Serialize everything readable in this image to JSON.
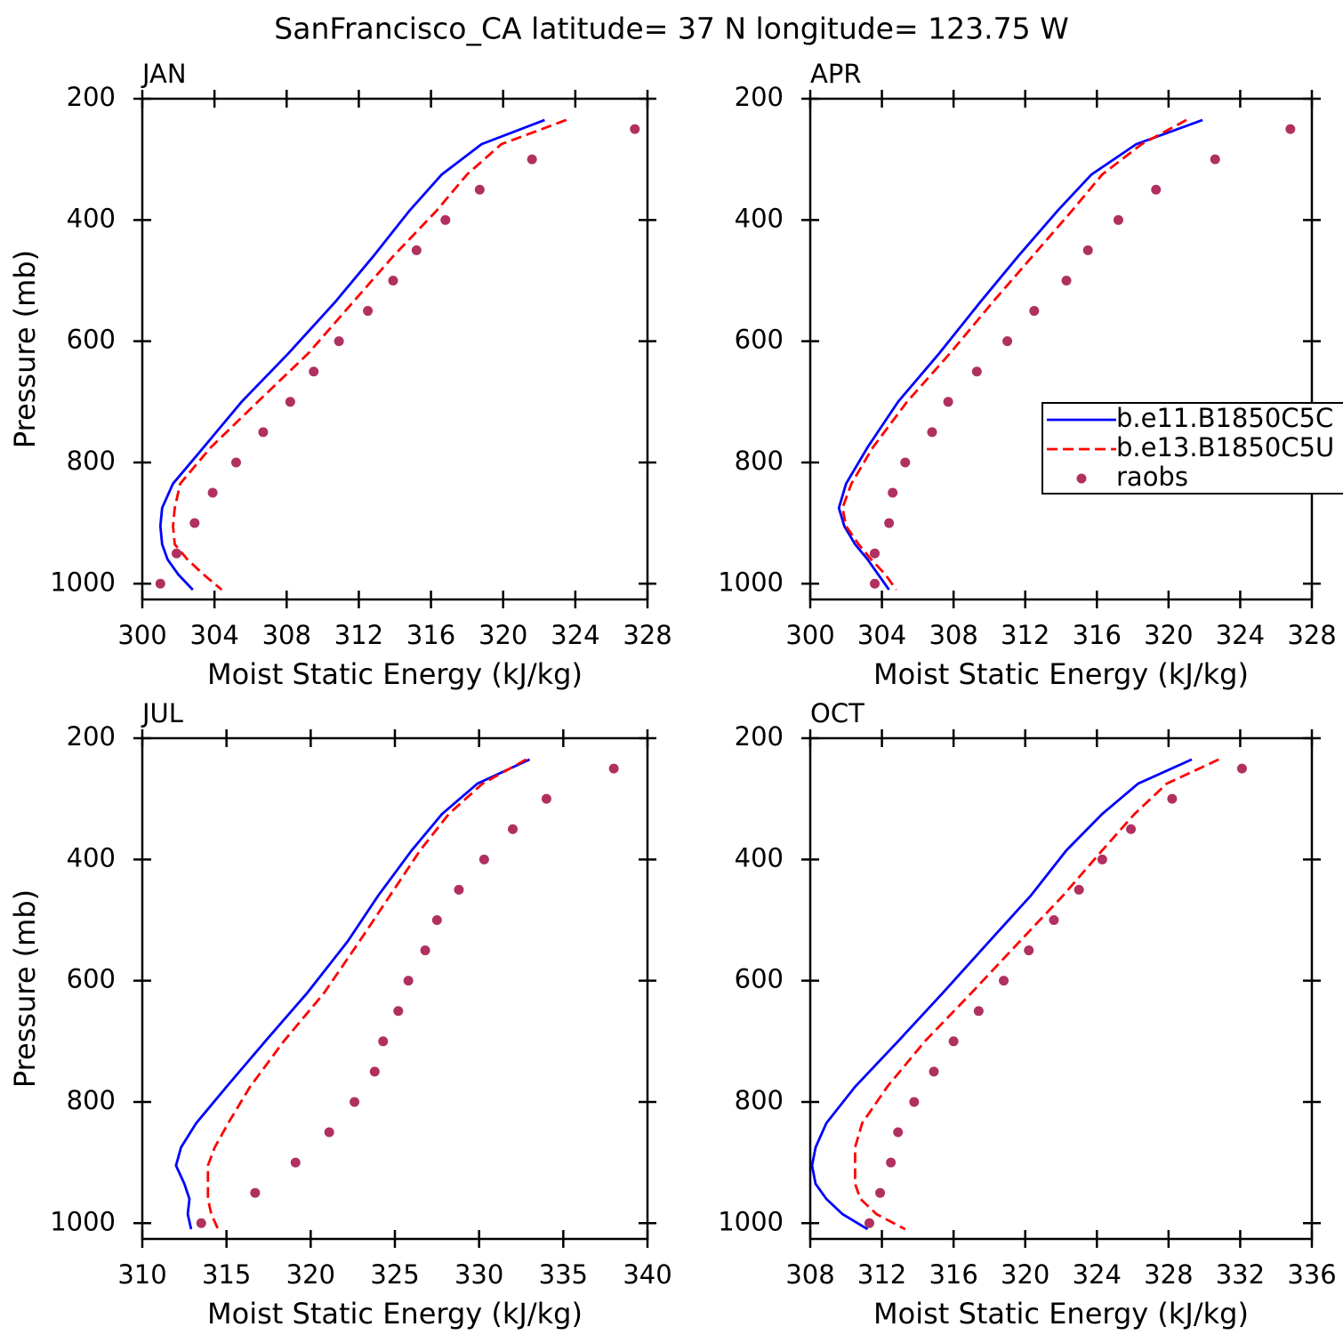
{
  "title": "SanFrancisco_CA  latitude= 37 N longitude= 123.75 W",
  "chart_data": [
    {
      "type": "line",
      "title": "JAN",
      "xlabel": "Moist Static Energy (kJ/kg)",
      "ylabel": "Pressure (mb)",
      "xlim": [
        300,
        328
      ],
      "xticks": [
        300,
        304,
        308,
        312,
        316,
        320,
        324,
        328
      ],
      "ylim": [
        1026,
        200
      ],
      "yticks": [
        200,
        400,
        600,
        800,
        1000
      ],
      "series": [
        {
          "color": "#0000ff",
          "style": "solid",
          "y": [
            235,
            275,
            325,
            385,
            460,
            535,
            620,
            700,
            775,
            835,
            875,
            905,
            935,
            960,
            985,
            1010
          ],
          "values": [
            322.3,
            318.8,
            316.6,
            314.8,
            312.8,
            310.7,
            308.1,
            305.5,
            303.4,
            301.7,
            301.1,
            301.0,
            301.1,
            301.4,
            302.0,
            302.8
          ]
        },
        {
          "color": "#ff0000",
          "style": "dashed",
          "y": [
            235,
            275,
            325,
            385,
            460,
            535,
            620,
            700,
            775,
            835,
            875,
            905,
            935,
            960,
            985,
            1010
          ],
          "values": [
            323.5,
            319.9,
            318.0,
            316.3,
            313.9,
            311.7,
            309.2,
            306.4,
            303.8,
            302.1,
            301.8,
            301.7,
            301.8,
            302.5,
            303.4,
            304.4
          ]
        },
        {
          "color": "#b03060",
          "style": "dots",
          "y": [
            1000,
            950,
            900,
            850,
            800,
            750,
            700,
            650,
            600,
            550,
            500,
            450,
            400,
            350,
            300,
            250
          ],
          "values": [
            301.0,
            301.9,
            302.9,
            303.9,
            305.2,
            306.7,
            308.2,
            309.5,
            310.9,
            312.5,
            313.9,
            315.2,
            316.8,
            318.7,
            321.6,
            327.3
          ]
        }
      ]
    },
    {
      "type": "line",
      "title": "APR",
      "xlabel": "Moist Static Energy (kJ/kg)",
      "xlim": [
        300,
        328
      ],
      "xticks": [
        300,
        304,
        308,
        312,
        316,
        320,
        324,
        328
      ],
      "ylim": [
        1026,
        200
      ],
      "yticks": [
        200,
        400,
        600,
        800,
        1000
      ],
      "legend": "right",
      "series": [
        {
          "name": "b.e11.B1850C5C",
          "color": "#0000ff",
          "style": "solid",
          "y": [
            235,
            275,
            325,
            385,
            460,
            535,
            620,
            700,
            775,
            835,
            875,
            905,
            935,
            960,
            985,
            1010
          ],
          "values": [
            321.9,
            318.2,
            315.7,
            313.8,
            311.6,
            309.5,
            307.2,
            304.9,
            303.2,
            302.0,
            301.6,
            301.9,
            302.5,
            303.2,
            303.8,
            304.4
          ]
        },
        {
          "name": "b.e13.B1850C5U",
          "color": "#ff0000",
          "style": "dashed",
          "y": [
            235,
            275,
            325,
            385,
            460,
            535,
            620,
            700,
            775,
            835,
            875,
            905,
            935,
            960,
            985,
            1010
          ],
          "values": [
            321.0,
            318.5,
            316.3,
            314.6,
            312.4,
            310.2,
            307.8,
            305.4,
            303.5,
            302.3,
            301.8,
            302.0,
            302.7,
            303.4,
            304.2,
            304.8
          ]
        },
        {
          "name": "raobs",
          "color": "#b03060",
          "style": "dots",
          "y": [
            1000,
            950,
            900,
            850,
            800,
            750,
            700,
            650,
            600,
            550,
            500,
            450,
            400,
            350,
            300,
            250
          ],
          "values": [
            303.6,
            303.6,
            304.4,
            304.6,
            305.3,
            306.8,
            307.7,
            309.3,
            311.0,
            312.5,
            314.3,
            315.5,
            317.2,
            319.3,
            322.6,
            326.8
          ]
        }
      ]
    },
    {
      "type": "line",
      "title": "JUL",
      "xlabel": "Moist Static Energy (kJ/kg)",
      "ylabel": "Pressure (mb)",
      "xlim": [
        310,
        340
      ],
      "xticks": [
        310,
        315,
        320,
        325,
        330,
        335,
        340
      ],
      "ylim": [
        1026,
        200
      ],
      "yticks": [
        200,
        400,
        600,
        800,
        1000
      ],
      "series": [
        {
          "color": "#0000ff",
          "style": "solid",
          "y": [
            235,
            275,
            325,
            385,
            460,
            535,
            620,
            700,
            775,
            835,
            875,
            905,
            935,
            960,
            985,
            1010
          ],
          "values": [
            333.0,
            329.9,
            327.8,
            326.0,
            324.0,
            322.2,
            319.8,
            317.3,
            315.0,
            313.2,
            312.3,
            312.0,
            312.5,
            312.8,
            312.7,
            312.9
          ]
        },
        {
          "color": "#ff0000",
          "style": "dashed",
          "y": [
            235,
            275,
            325,
            385,
            460,
            535,
            620,
            700,
            775,
            835,
            875,
            905,
            935,
            960,
            985,
            1010
          ],
          "values": [
            332.8,
            330.2,
            328.2,
            326.5,
            324.7,
            322.9,
            320.8,
            318.4,
            316.4,
            315.1,
            314.3,
            313.9,
            313.9,
            313.9,
            314.1,
            314.5
          ]
        },
        {
          "color": "#b03060",
          "style": "dots",
          "y": [
            1000,
            950,
            900,
            850,
            800,
            750,
            700,
            650,
            600,
            550,
            500,
            450,
            400,
            350,
            300,
            250
          ],
          "values": [
            313.5,
            316.7,
            319.1,
            321.1,
            322.6,
            323.8,
            324.3,
            325.2,
            325.8,
            326.8,
            327.5,
            328.8,
            330.3,
            332.0,
            334.0,
            338.0
          ]
        }
      ]
    },
    {
      "type": "line",
      "title": "OCT",
      "xlabel": "Moist Static Energy (kJ/kg)",
      "xlim": [
        308,
        336
      ],
      "xticks": [
        308,
        312,
        316,
        320,
        324,
        328,
        332,
        336
      ],
      "ylim": [
        1026,
        200
      ],
      "yticks": [
        200,
        400,
        600,
        800,
        1000
      ],
      "series": [
        {
          "color": "#0000ff",
          "style": "solid",
          "y": [
            235,
            275,
            325,
            385,
            460,
            535,
            620,
            700,
            775,
            835,
            875,
            905,
            935,
            960,
            985,
            1010
          ],
          "values": [
            329.3,
            326.3,
            324.3,
            322.3,
            320.3,
            318.0,
            315.4,
            312.9,
            310.5,
            308.9,
            308.3,
            308.1,
            308.3,
            308.9,
            309.8,
            311.2
          ]
        },
        {
          "color": "#ff0000",
          "style": "dashed",
          "y": [
            235,
            275,
            325,
            385,
            460,
            535,
            620,
            700,
            775,
            835,
            875,
            905,
            935,
            960,
            985,
            1010
          ],
          "values": [
            330.8,
            327.9,
            326.1,
            324.3,
            322.1,
            319.7,
            317.0,
            314.4,
            312.3,
            310.9,
            310.5,
            310.5,
            310.5,
            310.8,
            311.7,
            313.3
          ]
        },
        {
          "color": "#b03060",
          "style": "dots",
          "y": [
            1000,
            950,
            900,
            850,
            800,
            750,
            700,
            650,
            600,
            550,
            500,
            450,
            400,
            350,
            300,
            250
          ],
          "values": [
            311.3,
            311.9,
            312.5,
            312.9,
            313.8,
            314.9,
            316.0,
            317.4,
            318.8,
            320.2,
            321.6,
            323.0,
            324.3,
            325.9,
            328.2,
            332.1
          ]
        }
      ]
    }
  ]
}
